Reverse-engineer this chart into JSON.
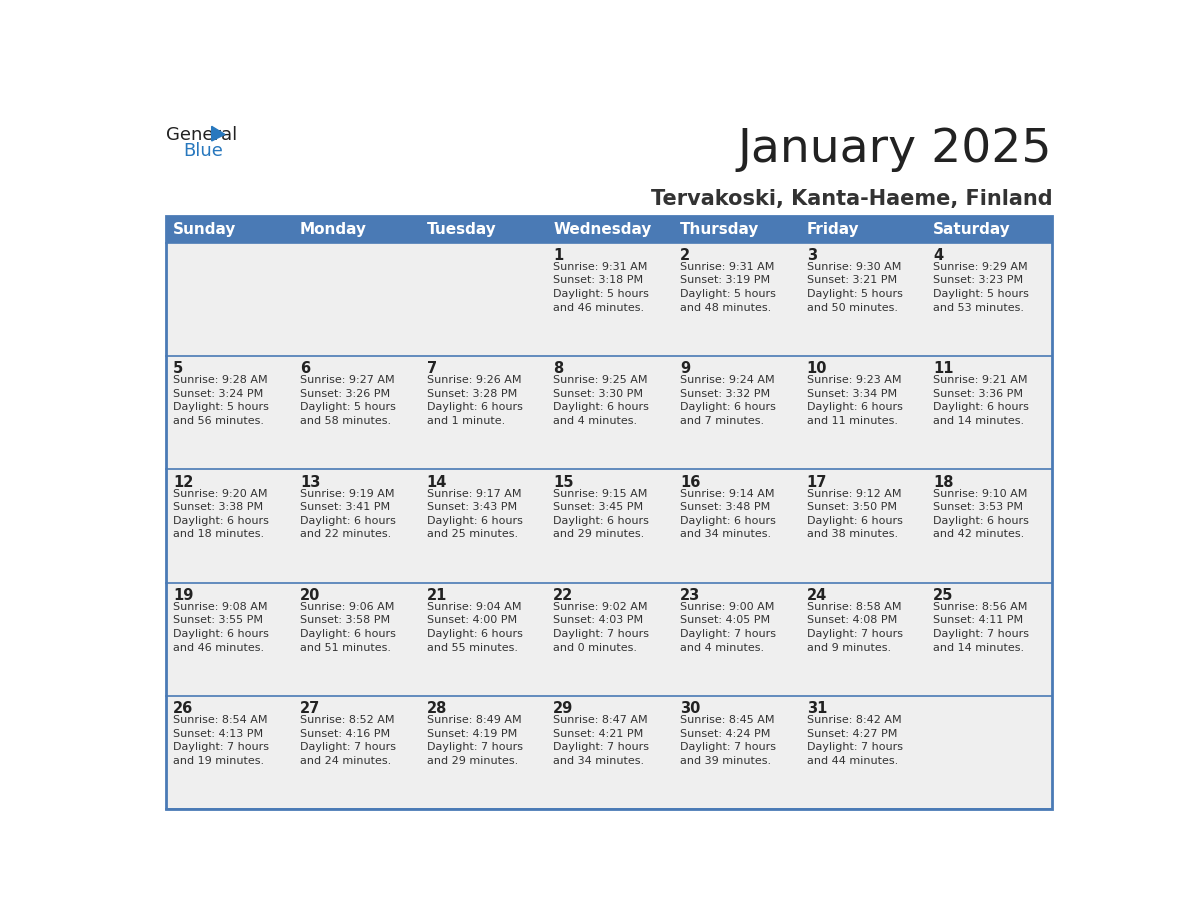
{
  "title": "January 2025",
  "subtitle": "Tervakoski, Kanta-Haeme, Finland",
  "days_of_week": [
    "Sunday",
    "Monday",
    "Tuesday",
    "Wednesday",
    "Thursday",
    "Friday",
    "Saturday"
  ],
  "header_bg": "#4a7ab5",
  "header_text": "#FFFFFF",
  "cell_bg": "#EFEFEF",
  "cell_border": "#4a7ab5",
  "day_num_color": "#222222",
  "info_color": "#333333",
  "title_color": "#222222",
  "subtitle_color": "#333333",
  "logo_general_color": "#222222",
  "logo_blue_color": "#2878BE",
  "weeks": [
    {
      "days": [
        {
          "date": null,
          "info": ""
        },
        {
          "date": null,
          "info": ""
        },
        {
          "date": null,
          "info": ""
        },
        {
          "date": 1,
          "info": "Sunrise: 9:31 AM\nSunset: 3:18 PM\nDaylight: 5 hours\nand 46 minutes."
        },
        {
          "date": 2,
          "info": "Sunrise: 9:31 AM\nSunset: 3:19 PM\nDaylight: 5 hours\nand 48 minutes."
        },
        {
          "date": 3,
          "info": "Sunrise: 9:30 AM\nSunset: 3:21 PM\nDaylight: 5 hours\nand 50 minutes."
        },
        {
          "date": 4,
          "info": "Sunrise: 9:29 AM\nSunset: 3:23 PM\nDaylight: 5 hours\nand 53 minutes."
        }
      ]
    },
    {
      "days": [
        {
          "date": 5,
          "info": "Sunrise: 9:28 AM\nSunset: 3:24 PM\nDaylight: 5 hours\nand 56 minutes."
        },
        {
          "date": 6,
          "info": "Sunrise: 9:27 AM\nSunset: 3:26 PM\nDaylight: 5 hours\nand 58 minutes."
        },
        {
          "date": 7,
          "info": "Sunrise: 9:26 AM\nSunset: 3:28 PM\nDaylight: 6 hours\nand 1 minute."
        },
        {
          "date": 8,
          "info": "Sunrise: 9:25 AM\nSunset: 3:30 PM\nDaylight: 6 hours\nand 4 minutes."
        },
        {
          "date": 9,
          "info": "Sunrise: 9:24 AM\nSunset: 3:32 PM\nDaylight: 6 hours\nand 7 minutes."
        },
        {
          "date": 10,
          "info": "Sunrise: 9:23 AM\nSunset: 3:34 PM\nDaylight: 6 hours\nand 11 minutes."
        },
        {
          "date": 11,
          "info": "Sunrise: 9:21 AM\nSunset: 3:36 PM\nDaylight: 6 hours\nand 14 minutes."
        }
      ]
    },
    {
      "days": [
        {
          "date": 12,
          "info": "Sunrise: 9:20 AM\nSunset: 3:38 PM\nDaylight: 6 hours\nand 18 minutes."
        },
        {
          "date": 13,
          "info": "Sunrise: 9:19 AM\nSunset: 3:41 PM\nDaylight: 6 hours\nand 22 minutes."
        },
        {
          "date": 14,
          "info": "Sunrise: 9:17 AM\nSunset: 3:43 PM\nDaylight: 6 hours\nand 25 minutes."
        },
        {
          "date": 15,
          "info": "Sunrise: 9:15 AM\nSunset: 3:45 PM\nDaylight: 6 hours\nand 29 minutes."
        },
        {
          "date": 16,
          "info": "Sunrise: 9:14 AM\nSunset: 3:48 PM\nDaylight: 6 hours\nand 34 minutes."
        },
        {
          "date": 17,
          "info": "Sunrise: 9:12 AM\nSunset: 3:50 PM\nDaylight: 6 hours\nand 38 minutes."
        },
        {
          "date": 18,
          "info": "Sunrise: 9:10 AM\nSunset: 3:53 PM\nDaylight: 6 hours\nand 42 minutes."
        }
      ]
    },
    {
      "days": [
        {
          "date": 19,
          "info": "Sunrise: 9:08 AM\nSunset: 3:55 PM\nDaylight: 6 hours\nand 46 minutes."
        },
        {
          "date": 20,
          "info": "Sunrise: 9:06 AM\nSunset: 3:58 PM\nDaylight: 6 hours\nand 51 minutes."
        },
        {
          "date": 21,
          "info": "Sunrise: 9:04 AM\nSunset: 4:00 PM\nDaylight: 6 hours\nand 55 minutes."
        },
        {
          "date": 22,
          "info": "Sunrise: 9:02 AM\nSunset: 4:03 PM\nDaylight: 7 hours\nand 0 minutes."
        },
        {
          "date": 23,
          "info": "Sunrise: 9:00 AM\nSunset: 4:05 PM\nDaylight: 7 hours\nand 4 minutes."
        },
        {
          "date": 24,
          "info": "Sunrise: 8:58 AM\nSunset: 4:08 PM\nDaylight: 7 hours\nand 9 minutes."
        },
        {
          "date": 25,
          "info": "Sunrise: 8:56 AM\nSunset: 4:11 PM\nDaylight: 7 hours\nand 14 minutes."
        }
      ]
    },
    {
      "days": [
        {
          "date": 26,
          "info": "Sunrise: 8:54 AM\nSunset: 4:13 PM\nDaylight: 7 hours\nand 19 minutes."
        },
        {
          "date": 27,
          "info": "Sunrise: 8:52 AM\nSunset: 4:16 PM\nDaylight: 7 hours\nand 24 minutes."
        },
        {
          "date": 28,
          "info": "Sunrise: 8:49 AM\nSunset: 4:19 PM\nDaylight: 7 hours\nand 29 minutes."
        },
        {
          "date": 29,
          "info": "Sunrise: 8:47 AM\nSunset: 4:21 PM\nDaylight: 7 hours\nand 34 minutes."
        },
        {
          "date": 30,
          "info": "Sunrise: 8:45 AM\nSunset: 4:24 PM\nDaylight: 7 hours\nand 39 minutes."
        },
        {
          "date": 31,
          "info": "Sunrise: 8:42 AM\nSunset: 4:27 PM\nDaylight: 7 hours\nand 44 minutes."
        },
        {
          "date": null,
          "info": ""
        }
      ]
    }
  ]
}
